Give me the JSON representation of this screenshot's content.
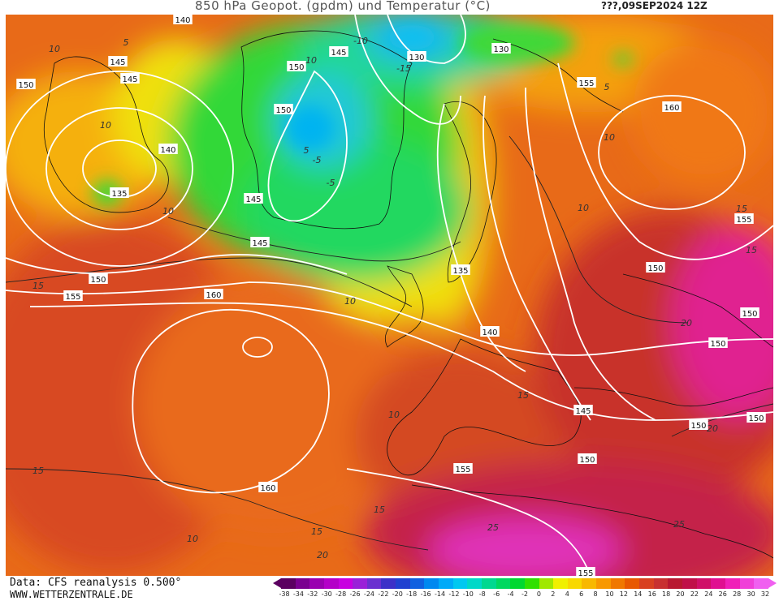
{
  "header": {
    "title": "850 hPa Geopot. (gpdm) und Temperatur (°C)",
    "valid_time": "???,09SEP2024 12Z"
  },
  "footer": {
    "data_source": "Data: CFS reanalysis 0.500°",
    "website": "WWW.WETTERZENTRALE.DE"
  },
  "legend": {
    "unit": "°C",
    "tick_labels": [
      "-38",
      "-34",
      "-32",
      "-30",
      "-28",
      "-26",
      "-24",
      "-22",
      "-20",
      "-18",
      "-16",
      "-14",
      "-12",
      "-10",
      "-8",
      "-6",
      "-4",
      "-2",
      "0",
      "2",
      "4",
      "6",
      "8",
      "10",
      "12",
      "14",
      "16",
      "18",
      "20",
      "22",
      "24",
      "26",
      "28",
      "30",
      "32"
    ],
    "colors": [
      "#5b0060",
      "#7a0090",
      "#9a00b0",
      "#b400c8",
      "#c800e0",
      "#9a20d8",
      "#6a30d0",
      "#3c30c8",
      "#2040d0",
      "#1060e0",
      "#0088f0",
      "#00aaf8",
      "#00c8f0",
      "#00d8c8",
      "#00d890",
      "#00d860",
      "#00d830",
      "#30e000",
      "#a0e800",
      "#f0f000",
      "#f8d800",
      "#f8b800",
      "#f89800",
      "#f07800",
      "#e85800",
      "#d84020",
      "#c83030",
      "#b81830",
      "#c01048",
      "#d01068",
      "#e01090",
      "#f020b8",
      "#f040d8",
      "#f060f0"
    ]
  },
  "map": {
    "geopotential_labels": [
      {
        "text": "140"
      },
      {
        "text": "145"
      },
      {
        "text": "145"
      },
      {
        "text": "150"
      },
      {
        "text": "150"
      },
      {
        "text": "145"
      },
      {
        "text": "130"
      },
      {
        "text": "130"
      },
      {
        "text": "150"
      },
      {
        "text": "140"
      },
      {
        "text": "135"
      },
      {
        "text": "145"
      },
      {
        "text": "145"
      },
      {
        "text": "150"
      },
      {
        "text": "155"
      },
      {
        "text": "160"
      },
      {
        "text": "135"
      },
      {
        "text": "140"
      },
      {
        "text": "155"
      },
      {
        "text": "160"
      },
      {
        "text": "155"
      },
      {
        "text": "150"
      },
      {
        "text": "150"
      },
      {
        "text": "150"
      },
      {
        "text": "145"
      },
      {
        "text": "150"
      },
      {
        "text": "150"
      },
      {
        "text": "150"
      },
      {
        "text": "155"
      },
      {
        "text": "160"
      },
      {
        "text": "155"
      }
    ],
    "temperature_labels": [
      {
        "text": "10"
      },
      {
        "text": "5"
      },
      {
        "text": "-10"
      },
      {
        "text": "10"
      },
      {
        "text": "10"
      },
      {
        "text": "5"
      },
      {
        "text": "-5"
      },
      {
        "text": "-5"
      },
      {
        "text": "10"
      },
      {
        "text": "15"
      },
      {
        "text": "10"
      },
      {
        "text": "5"
      },
      {
        "text": "10"
      },
      {
        "text": "10"
      },
      {
        "text": "15"
      },
      {
        "text": "15"
      },
      {
        "text": "20"
      },
      {
        "text": "15"
      },
      {
        "text": "10"
      },
      {
        "text": "15"
      },
      {
        "text": "20"
      },
      {
        "text": "25"
      },
      {
        "text": "25"
      },
      {
        "text": "15"
      },
      {
        "text": "15"
      },
      {
        "text": "20"
      },
      {
        "text": "10"
      },
      {
        "text": "-15"
      }
    ]
  }
}
